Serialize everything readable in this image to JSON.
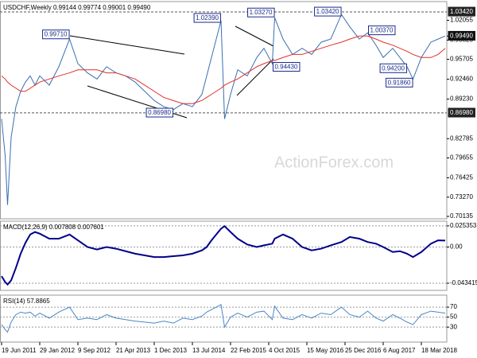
{
  "chart_data": [
    {
      "type": "line",
      "title": "USDCHF,Weekly  0.99144 0.99774 0.99001 0.99490",
      "watermark": "ActionForex.com",
      "x": [
        0,
        3,
        5,
        8,
        12,
        16,
        20,
        24,
        28,
        32,
        40,
        48,
        57,
        64,
        72,
        80,
        88,
        96,
        104,
        112,
        120,
        128,
        136,
        144,
        152,
        160,
        168,
        172,
        176,
        180,
        184,
        187,
        192,
        198,
        206,
        214,
        220,
        227,
        229,
        236,
        244,
        252,
        260,
        268,
        276,
        285,
        292,
        300,
        307,
        314,
        320,
        328,
        334,
        340,
        345,
        352,
        360,
        366,
        372
      ],
      "xlim": [
        -1.33,
        372
      ],
      "series": [
        {
          "color": "#3a6fb0",
          "values": [
            0.86,
            0.8,
            0.72,
            0.83,
            0.88,
            0.905,
            0.92,
            0.93,
            0.915,
            0.93,
            0.915,
            0.945,
            0.99,
            0.95,
            0.935,
            0.925,
            0.945,
            0.935,
            0.93,
            0.92,
            0.905,
            0.89,
            0.88,
            0.875,
            0.885,
            0.88,
            0.9,
            0.93,
            0.96,
            0.99,
            1.02,
            0.86,
            0.9,
            0.94,
            0.93,
            0.96,
            0.975,
            0.95,
            1.025,
            0.99,
            0.965,
            0.975,
            0.965,
            0.985,
            0.99,
            1.03,
            1.01,
            0.99,
            1.0,
            0.98,
            0.96,
            0.975,
            0.96,
            0.945,
            0.925,
            0.96,
            0.985,
            0.99,
            0.9949
          ]
        },
        {
          "color": "#e0302a",
          "values": [
            0.93,
            0.925,
            0.92,
            0.915,
            0.91,
            0.905,
            0.905,
            0.91,
            0.915,
            0.92,
            0.925,
            0.93,
            0.935,
            0.94,
            0.94,
            0.94,
            0.935,
            0.935,
            0.93,
            0.925,
            0.915,
            0.905,
            0.895,
            0.89,
            0.885,
            0.885,
            0.89,
            0.895,
            0.9,
            0.905,
            0.91,
            0.915,
            0.92,
            0.925,
            0.935,
            0.945,
            0.95,
            0.955,
            0.955,
            0.96,
            0.965,
            0.965,
            0.97,
            0.975,
            0.98,
            0.985,
            0.99,
            0.995,
            0.995,
            0.99,
            0.985,
            0.98,
            0.975,
            0.97,
            0.965,
            0.96,
            0.96,
            0.965,
            0.975
          ]
        }
      ],
      "ylim": [
        0.6975,
        1.051
      ],
      "yticks": [
        1.02055,
        0.98825,
        0.95705,
        {
          "value": 0.9246,
          "label": "0.92460"
        },
        {
          "value": 0.8923,
          "label": "0.89230"
        },
        0.82785,
        0.79655,
        0.76425,
        {
          "value": 0.7327,
          "label": "0.73270"
        },
        0.70135
      ],
      "levels": [
        {
          "value": 1.0342,
          "label": "1.03420"
        },
        {
          "value": 0.8698,
          "label": "0.86980"
        }
      ],
      "last_price": {
        "value": 0.9949,
        "label": "0.99490"
      },
      "annotations": [
        {
          "x": 57,
          "value": 0.9971,
          "label": "0.99710",
          "anchor": "end"
        },
        {
          "x": 144,
          "value": 0.8698,
          "label": "0.86980",
          "anchor": "end"
        },
        {
          "x": 184,
          "value": 1.0239,
          "label": "1.02390",
          "anchor": "end"
        },
        {
          "x": 229,
          "value": 1.0327,
          "label": "1.03270",
          "anchor": "end"
        },
        {
          "x": 285,
          "value": 1.0342,
          "label": "1.03420",
          "anchor": "end"
        },
        {
          "x": 307,
          "value": 1.0037,
          "label": "1.00370",
          "anchor": "start"
        },
        {
          "x": 227,
          "value": 0.9443,
          "label": "0.94430",
          "anchor": "start"
        },
        {
          "x": 340,
          "value": 0.942,
          "label": "0.94200",
          "anchor": "end"
        },
        {
          "x": 345,
          "value": 0.9186,
          "label": "0.91860",
          "anchor": "end"
        }
      ]
    },
    {
      "type": "line",
      "title": "MACD(12,26,9) 0.007808 0.007601",
      "x": [
        0,
        3,
        5,
        8,
        12,
        16,
        20,
        24,
        28,
        32,
        40,
        48,
        57,
        64,
        72,
        80,
        88,
        96,
        104,
        112,
        120,
        128,
        136,
        144,
        152,
        160,
        168,
        172,
        176,
        180,
        184,
        187,
        192,
        198,
        206,
        214,
        220,
        227,
        229,
        236,
        244,
        252,
        260,
        268,
        276,
        285,
        292,
        300,
        307,
        314,
        320,
        328,
        334,
        340,
        345,
        352,
        360,
        366,
        372
      ],
      "xlim": [
        -1.33,
        372
      ],
      "series": [
        {
          "color": "#00008b",
          "values": [
            -0.035,
            -0.042,
            -0.045,
            -0.04,
            -0.025,
            -0.008,
            0.005,
            0.015,
            0.018,
            0.016,
            0.01,
            0.01,
            0.015,
            0.008,
            0.0,
            -0.003,
            0.0,
            -0.002,
            -0.005,
            -0.008,
            -0.01,
            -0.012,
            -0.012,
            -0.011,
            -0.01,
            -0.008,
            -0.004,
            0.0,
            0.008,
            0.015,
            0.022,
            0.025,
            0.018,
            0.01,
            0.003,
            0.0,
            0.002,
            0.004,
            0.01,
            0.015,
            0.01,
            0.0,
            -0.004,
            -0.002,
            0.002,
            0.006,
            0.012,
            0.01,
            0.006,
            0.004,
            0.0,
            -0.006,
            -0.005,
            -0.008,
            -0.012,
            -0.006,
            0.004,
            0.008,
            0.0078
          ]
        }
      ],
      "ylim": [
        -0.052,
        0.031
      ],
      "yticks": [
        0.025353,
        {
          "value": 0,
          "label": "0.00"
        },
        -0.043415
      ],
      "grid": true
    },
    {
      "type": "line",
      "title": "RSI(14) 57.8865",
      "x": [
        0,
        3,
        5,
        8,
        12,
        16,
        20,
        24,
        28,
        32,
        40,
        48,
        57,
        64,
        72,
        80,
        88,
        96,
        104,
        112,
        120,
        128,
        136,
        144,
        152,
        160,
        168,
        172,
        176,
        180,
        184,
        187,
        192,
        198,
        206,
        214,
        220,
        227,
        229,
        236,
        244,
        252,
        260,
        268,
        276,
        285,
        292,
        300,
        307,
        314,
        320,
        328,
        334,
        340,
        345,
        352,
        360,
        366,
        372
      ],
      "xlim": [
        -1.33,
        372
      ],
      "series": [
        {
          "color": "#4a86c8",
          "values": [
            35,
            25,
            20,
            40,
            55,
            60,
            58,
            60,
            52,
            58,
            48,
            60,
            70,
            45,
            48,
            45,
            55,
            48,
            45,
            42,
            40,
            38,
            42,
            38,
            48,
            45,
            52,
            60,
            65,
            70,
            75,
            30,
            50,
            58,
            50,
            60,
            62,
            45,
            72,
            48,
            45,
            55,
            48,
            58,
            55,
            70,
            55,
            50,
            62,
            48,
            42,
            55,
            48,
            40,
            35,
            55,
            62,
            60,
            57.8865
          ]
        }
      ],
      "ylim": [
        0,
        94
      ],
      "yticks": [
        70,
        50,
        30
      ],
      "grid": true,
      "xticks": [
        {
          "value": 0,
          "label": "19 Jun 2011"
        },
        {
          "value": 32,
          "label": "29 Jan 2012"
        },
        {
          "value": 64,
          "label": "9 Sep 2012"
        },
        {
          "value": 96,
          "label": "21 Apr 2013"
        },
        {
          "value": 128,
          "label": "1 Dec 2013"
        },
        {
          "value": 160,
          "label": "13 Jul 2014"
        },
        {
          "value": 192,
          "label": "22 Feb 2015"
        },
        {
          "value": 224,
          "label": "4 Oct 2015"
        },
        {
          "value": 256,
          "label": "15 May 2016"
        },
        {
          "value": 288,
          "label": "25 Dec 2016"
        },
        {
          "value": 320,
          "label": "6 Aug 2017"
        },
        {
          "value": 352,
          "label": "18 Mar 2018"
        }
      ]
    }
  ]
}
